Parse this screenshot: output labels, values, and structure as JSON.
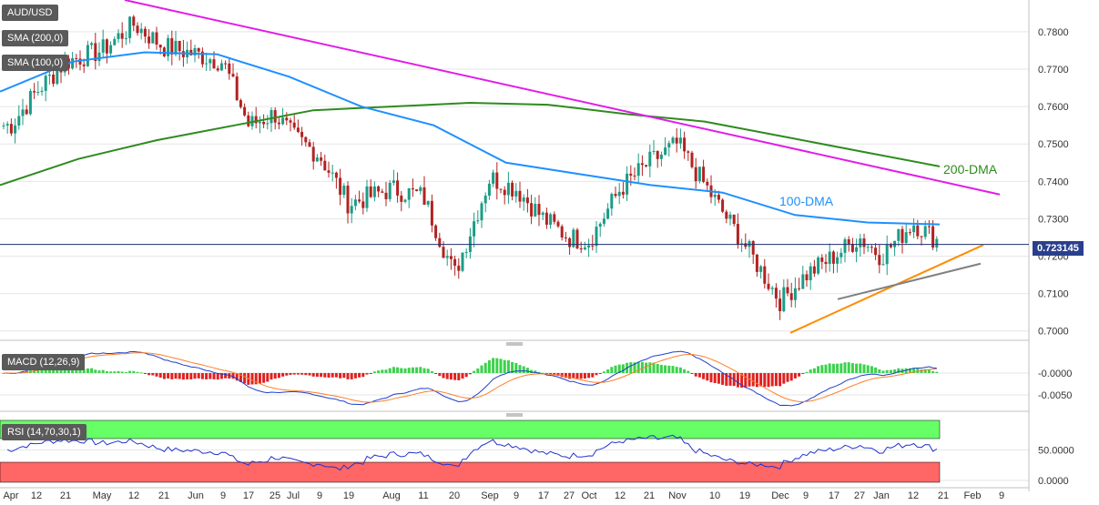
{
  "chart_title": "AUD/USD",
  "legend": {
    "sma200": "SMA (200,0)",
    "sma100": "SMA (100,0)",
    "macd": "MACD (12,26,9)",
    "rsi": "RSI (14,70,30,1)"
  },
  "current_price": "0.723145",
  "annotations": {
    "dma200": "200-DMA",
    "dma100": "100-DMA"
  },
  "colors": {
    "up_candle": "#1b9c85",
    "down_candle": "#b22222",
    "sma200": "#2e8b1e",
    "sma100": "#1e90ff",
    "resistance": "#e11de8",
    "support": "#ff8c00",
    "support2": "#808080",
    "price_line": "#1f2f6e",
    "macd_line": "#1f3fd0",
    "signal_line": "#ff7f27",
    "hist_pos": "#3ad24a",
    "hist_neg": "#e02020",
    "rsi_line": "#2233cc",
    "rsi_overbought": "#66ff66",
    "rsi_oversold": "#ff6666"
  },
  "chart_data": [
    {
      "type": "candlestick",
      "title": "AUD/USD",
      "ylim": [
        0.6975,
        0.7885
      ],
      "y_ticks": [
        "0.7800",
        "0.7700",
        "0.7600",
        "0.7500",
        "0.7400",
        "0.7300",
        "0.7200",
        "0.7100",
        "0.7000"
      ],
      "x_ticks": [
        "Apr",
        "12",
        "21",
        "May",
        "12",
        "21",
        "Jun",
        "9",
        "17",
        "25",
        "Jul",
        "9",
        "19",
        "Aug",
        "11",
        "20",
        "Sep",
        "9",
        "17",
        "27",
        "Oct",
        "12",
        "21",
        "Nov",
        "10",
        "19",
        "Dec",
        "9",
        "17",
        "27",
        "Jan",
        "12",
        "21",
        "Feb",
        "9"
      ],
      "close_approx": [
        {
          "x": "Apr",
          "y": 0.755
        },
        {
          "x": "12",
          "y": 0.764
        },
        {
          "x": "21",
          "y": 0.772
        },
        {
          "x": "May",
          "y": 0.775
        },
        {
          "x": "12",
          "y": 0.782
        },
        {
          "x": "21",
          "y": 0.776
        },
        {
          "x": "Jun",
          "y": 0.774
        },
        {
          "x": "9",
          "y": 0.772
        },
        {
          "x": "17",
          "y": 0.755
        },
        {
          "x": "25",
          "y": 0.758
        },
        {
          "x": "Jul",
          "y": 0.752
        },
        {
          "x": "9",
          "y": 0.747
        },
        {
          "x": "19",
          "y": 0.734
        },
        {
          "x": "Aug",
          "y": 0.738
        },
        {
          "x": "11",
          "y": 0.736
        },
        {
          "x": "20",
          "y": 0.715
        },
        {
          "x": "Sep",
          "y": 0.741
        },
        {
          "x": "9",
          "y": 0.738
        },
        {
          "x": "17",
          "y": 0.73
        },
        {
          "x": "27",
          "y": 0.725
        },
        {
          "x": "Oct",
          "y": 0.724
        },
        {
          "x": "12",
          "y": 0.738
        },
        {
          "x": "21",
          "y": 0.745
        },
        {
          "x": "Nov",
          "y": 0.75
        },
        {
          "x": "10",
          "y": 0.735
        },
        {
          "x": "19",
          "y": 0.723
        },
        {
          "x": "Dec",
          "y": 0.708
        },
        {
          "x": "9",
          "y": 0.715
        },
        {
          "x": "17",
          "y": 0.72
        },
        {
          "x": "27",
          "y": 0.725
        },
        {
          "x": "Jan",
          "y": 0.72
        },
        {
          "x": "12",
          "y": 0.729
        },
        {
          "x": "21",
          "y": 0.7231
        }
      ],
      "series": [
        {
          "name": "200-DMA",
          "values": [
            0.739,
            0.746,
            0.751,
            0.755,
            0.759,
            0.76,
            0.761,
            0.7605,
            0.758,
            0.756,
            0.752,
            0.748,
            0.744
          ]
        },
        {
          "name": "100-DMA",
          "values": [
            0.764,
            0.772,
            0.7745,
            0.774,
            0.768,
            0.76,
            0.755,
            0.745,
            0.742,
            0.739,
            0.737,
            0.731,
            0.729,
            0.7285
          ]
        }
      ],
      "trendlines": [
        {
          "from": {
            "x": "May",
            "y": 0.7885
          },
          "to": {
            "x": "Feb",
            "y": 0.7365
          }
        },
        {
          "from": {
            "x": "Dec",
            "y": 0.6995
          },
          "to": {
            "x": "Feb",
            "y": 0.723
          }
        },
        {
          "from": {
            "x": "17",
            "y": 0.7085
          },
          "to": {
            "x": "Feb",
            "y": 0.718
          }
        }
      ]
    },
    {
      "type": "bar",
      "title": "MACD (12,26,9)",
      "y_ticks": [
        "-0.0000",
        "-0.0050"
      ],
      "ylim": [
        -0.011,
        0.006
      ]
    },
    {
      "type": "line",
      "title": "RSI (14,70,30,1)",
      "y_ticks": [
        "50.0000",
        "0.0000"
      ],
      "ylim": [
        0,
        100
      ],
      "overbought": 70,
      "oversold": 30,
      "last": 52
    }
  ]
}
